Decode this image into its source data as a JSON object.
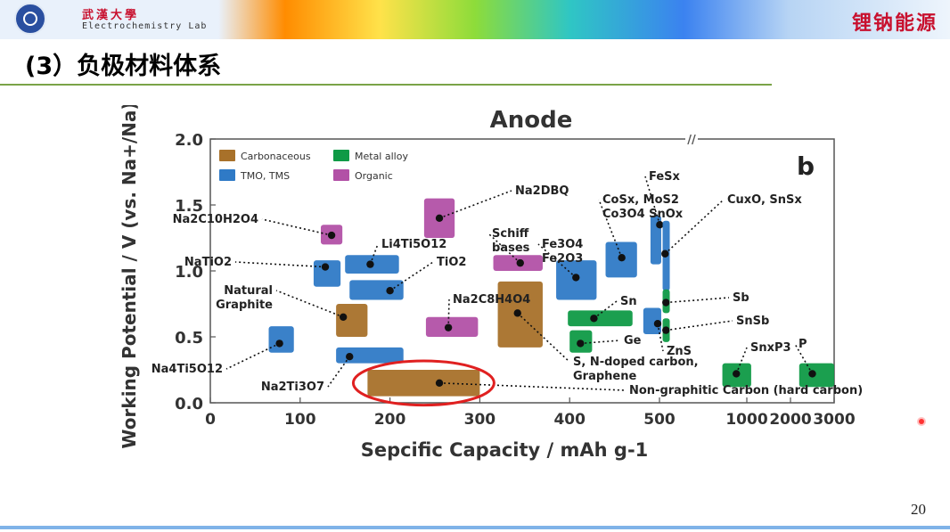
{
  "header": {
    "org_name": "武漢大學",
    "lab_name": "Electrochemistry Lab",
    "slogan": "锂钠能源"
  },
  "slide": {
    "title": "(3）负极材料体系",
    "page_number": "20"
  },
  "chart_data": {
    "type": "scatter",
    "title": "Anode",
    "panel_label": "b",
    "xlabel": "Sepcific Capacity / mAh g-1",
    "ylabel": "Working Potential / V (vs. Na+/Na)",
    "x_axis_break": "//",
    "ylim": [
      0.0,
      2.0
    ],
    "yticks": [
      "0.0",
      "0.5",
      "1.0",
      "1.5",
      "2.0"
    ],
    "xticks": [
      "0",
      "100",
      "200",
      "300",
      "400",
      "500",
      "1000",
      "2000",
      "3000"
    ],
    "legend": [
      {
        "name": "Carbonaceous",
        "color": "#a8712a"
      },
      {
        "name": "Metal alloy",
        "color": "#0f9a46"
      },
      {
        "name": "TMO, TMS",
        "color": "#2f7ac6"
      },
      {
        "name": "Organic",
        "color": "#b251a6"
      }
    ],
    "series": [
      {
        "name": "Carbonaceous",
        "color": "#a8712a",
        "regions": [
          {
            "label": "Natural Graphite",
            "x": [
              140,
              175
            ],
            "y": [
              0.5,
              0.75
            ],
            "point": [
              148,
              0.65
            ]
          },
          {
            "label": "S, N-doped carbon, Graphene",
            "x": [
              320,
              370
            ],
            "y": [
              0.42,
              0.92
            ],
            "point": [
              342,
              0.68
            ]
          },
          {
            "label": "Non-graphitic Carbon (hard carbon)",
            "x": [
              175,
              300
            ],
            "y": [
              0.05,
              0.25
            ],
            "point": [
              255,
              0.15
            ]
          }
        ]
      },
      {
        "name": "TMO, TMS",
        "color": "#2f7ac6",
        "regions": [
          {
            "label": "Na4Ti5O12",
            "x": [
              65,
              93
            ],
            "y": [
              0.38,
              0.58
            ],
            "point": [
              77,
              0.45
            ]
          },
          {
            "label": "NaTiO2",
            "x": [
              115,
              145
            ],
            "y": [
              0.88,
              1.08
            ],
            "point": [
              128,
              1.03
            ]
          },
          {
            "label": "Li4Ti5O12",
            "x": [
              150,
              210
            ],
            "y": [
              0.98,
              1.12
            ],
            "point": [
              178,
              1.05
            ]
          },
          {
            "label": "TiO2",
            "x": [
              155,
              215
            ],
            "y": [
              0.78,
              0.93
            ],
            "point": [
              200,
              0.85
            ]
          },
          {
            "label": "Na2Ti3O7",
            "x": [
              140,
              215
            ],
            "y": [
              0.3,
              0.42
            ],
            "point": [
              155,
              0.35
            ]
          },
          {
            "label": "Fe3O4 Fe2O3",
            "x": [
              385,
              430
            ],
            "y": [
              0.78,
              1.08
            ],
            "point": [
              407,
              0.95
            ]
          },
          {
            "label": "CoSx, MoS2 Co3O4 SnOx",
            "x": [
              440,
              475
            ],
            "y": [
              0.95,
              1.22
            ],
            "point": [
              458,
              1.1
            ]
          },
          {
            "label": "FeSx",
            "x": [
              490,
              510
            ],
            "y": [
              1.05,
              1.42
            ],
            "point": [
              502,
              1.35
            ]
          },
          {
            "label": "CuxO, SnSx",
            "x": [
              518,
              545
            ],
            "y": [
              0.85,
              1.38
            ],
            "point": [
              532,
              1.13
            ]
          },
          {
            "label": "ZnS",
            "x": [
              482,
              510
            ],
            "y": [
              0.52,
              0.72
            ],
            "point": [
              498,
              0.6
            ]
          }
        ]
      },
      {
        "name": "Organic",
        "color": "#b251a6",
        "regions": [
          {
            "label": "Na2C10H2O4",
            "x": [
              123,
              147
            ],
            "y": [
              1.2,
              1.35
            ],
            "point": [
              135,
              1.27
            ]
          },
          {
            "label": "Na2DBQ",
            "x": [
              238,
              272
            ],
            "y": [
              1.25,
              1.55
            ],
            "point": [
              255,
              1.4
            ]
          },
          {
            "label": "Na2C8H4O4",
            "x": [
              240,
              298
            ],
            "y": [
              0.5,
              0.65
            ],
            "point": [
              265,
              0.57
            ]
          },
          {
            "label": "Schiff bases",
            "x": [
              315,
              370
            ],
            "y": [
              1.0,
              1.12
            ],
            "point": [
              345,
              1.06
            ]
          }
        ]
      },
      {
        "name": "Metal alloy",
        "color": "#0f9a46",
        "regions": [
          {
            "label": "Sn",
            "x": [
              398,
              470
            ],
            "y": [
              0.58,
              0.7
            ],
            "point": [
              427,
              0.64
            ]
          },
          {
            "label": "Ge",
            "x": [
              400,
              425
            ],
            "y": [
              0.38,
              0.55
            ],
            "point": [
              412,
              0.45
            ]
          },
          {
            "label": "Sb",
            "x": [
              518,
              556
            ],
            "y": [
              0.68,
              0.86
            ],
            "point": [
              537,
              0.76
            ]
          },
          {
            "label": "SnSb",
            "x": [
              518,
              556
            ],
            "y": [
              0.46,
              0.64
            ],
            "point": [
              537,
              0.55
            ]
          },
          {
            "label": "SnxP3",
            "x": [
              860,
              1100
            ],
            "y": [
              0.12,
              0.3
            ],
            "point": [
              940,
              0.22
            ]
          },
          {
            "label": "P",
            "x": [
              2200,
              3000
            ],
            "y": [
              0.12,
              0.3
            ],
            "point": [
              2500,
              0.22
            ]
          }
        ]
      }
    ],
    "highlight": {
      "target": "Non-graphitic Carbon (hard carbon)",
      "color": "#e02020"
    }
  }
}
